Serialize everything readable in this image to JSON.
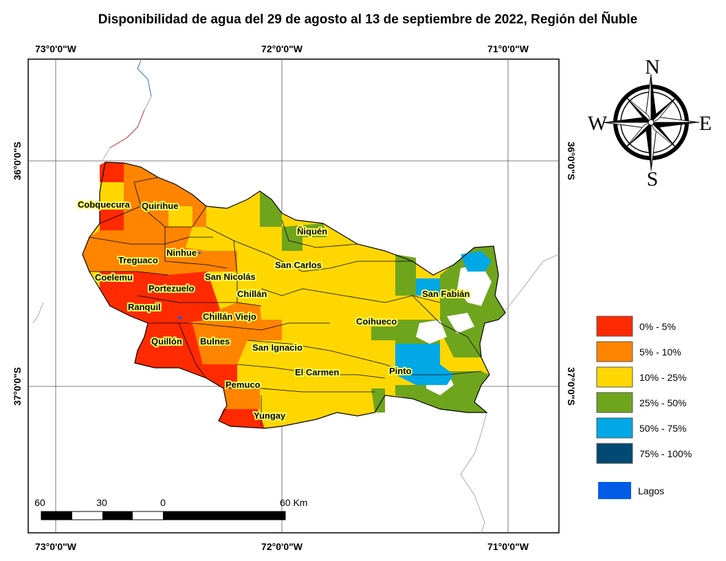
{
  "title": "Disponibilidad de agua del 29 de agosto al 13 de septiembre de 2022, Región del Ñuble",
  "graticule": {
    "lon_labels": [
      "73°0'0\"W",
      "72°0'0\"W",
      "71°0'0\"W"
    ],
    "lat_labels": [
      "36°0'0\"S",
      "37°0'0\"S"
    ]
  },
  "communes": [
    "Cobquecura",
    "Quirihue",
    "Ñiquén",
    "Ninhue",
    "Treguaco",
    "San Carlos",
    "Coelemu",
    "San Nicolás",
    "Portezuelo",
    "Chillán",
    "San Fabián",
    "Ranquil",
    "Chillán Viejo",
    "Coihueco",
    "Quillón",
    "Bulnes",
    "San Ignacio",
    "El Carmen",
    "Pinto",
    "Pemuco",
    "Yungay"
  ],
  "legend": {
    "classes": [
      {
        "label": "0% - 5%",
        "color": "#ff2a00"
      },
      {
        "label": "5% - 10%",
        "color": "#ff8400"
      },
      {
        "label": "10% - 25%",
        "color": "#ffd700"
      },
      {
        "label": "25% - 50%",
        "color": "#6fa41d"
      },
      {
        "label": "50% - 75%",
        "color": "#00a8e6"
      },
      {
        "label": "75% - 100%",
        "color": "#004a73"
      }
    ],
    "lakes": {
      "label": "Lagos",
      "color": "#005ce6"
    }
  },
  "scale_bar": {
    "ticks": [
      "60",
      "30",
      "0",
      "60 Km"
    ]
  },
  "compass": {
    "n": "N",
    "s": "S",
    "e": "E",
    "w": "W"
  }
}
